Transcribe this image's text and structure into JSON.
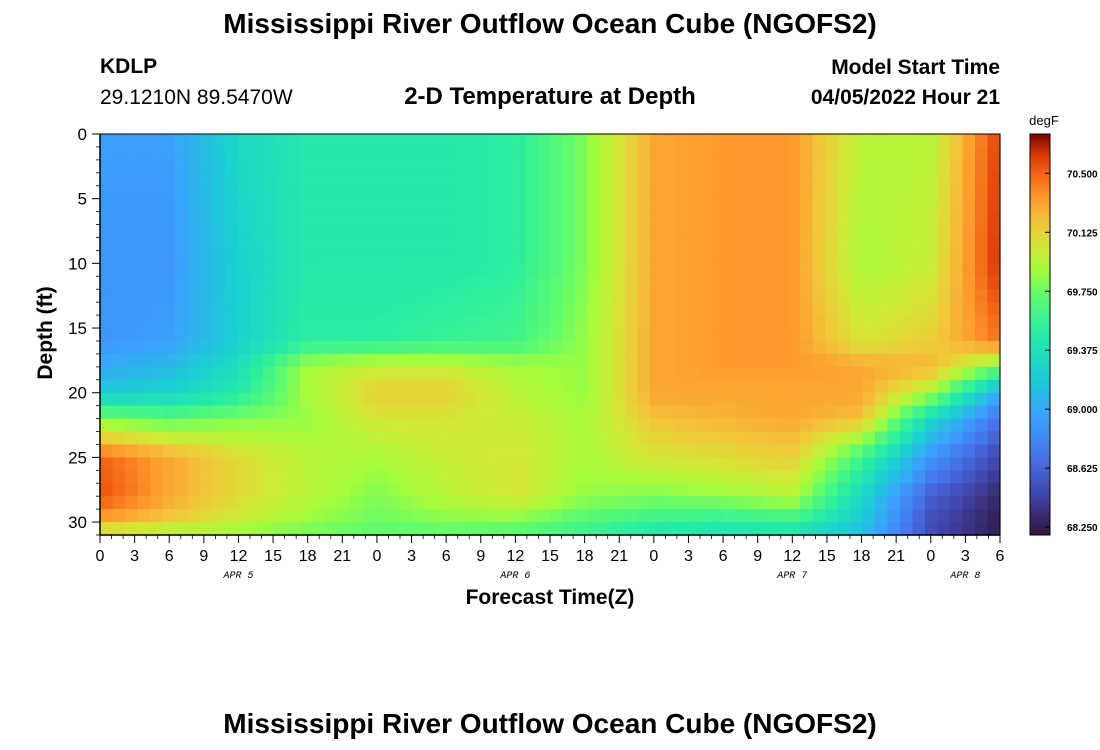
{
  "header": {
    "title": "Mississippi River Outflow Ocean Cube (NGOFS2)",
    "station_id": "KDLP",
    "coordinates": "29.1210N  89.5470W",
    "subtitle": "2-D Temperature at Depth",
    "model_label": "Model Start Time",
    "model_time": "04/05/2022 Hour 21"
  },
  "footer": {
    "title": "Mississippi River Outflow Ocean Cube (NGOFS2)"
  },
  "chart_data": {
    "type": "heatmap",
    "title": "2-D Temperature at Depth",
    "xlabel": "Forecast Time(Z)",
    "ylabel": "Depth (ft)",
    "x_tick_labels": [
      "0",
      "3",
      "6",
      "9",
      "12",
      "15",
      "18",
      "21",
      "0",
      "3",
      "6",
      "9",
      "12",
      "15",
      "18",
      "21",
      "0",
      "3",
      "6",
      "9",
      "12",
      "15",
      "18",
      "21",
      "0",
      "3",
      "6"
    ],
    "x_range_hours": [
      0,
      78
    ],
    "date_labels": [
      {
        "label": "APR 5",
        "hour": 12
      },
      {
        "label": "APR 6",
        "hour": 36
      },
      {
        "label": "APR 7",
        "hour": 60
      },
      {
        "label": "APR 8",
        "hour": 75
      }
    ],
    "y_ticks": [
      0,
      5,
      10,
      15,
      20,
      25,
      30
    ],
    "y_range": [
      0,
      31
    ],
    "colorbar": {
      "unit": "degF",
      "range": [
        68.2,
        70.75
      ],
      "tick_values": [
        70.5,
        70.125,
        69.75,
        69.375,
        69.0,
        68.625,
        68.25
      ],
      "tick_labels": [
        "70.500",
        "70.125",
        "69.750",
        "69.375",
        "69.000",
        "68.625",
        "68.250"
      ]
    },
    "depth_levels_ft": [
      0,
      10,
      16,
      18,
      20,
      22,
      25,
      28,
      30,
      31
    ],
    "time_knots_hours": [
      0,
      6,
      12,
      18,
      24,
      30,
      36,
      42,
      48,
      54,
      60,
      66,
      72,
      78
    ],
    "temperature_degF": [
      [
        68.95,
        68.95,
        69.3,
        69.45,
        69.45,
        69.45,
        69.5,
        69.8,
        70.3,
        70.35,
        70.35,
        69.95,
        69.95,
        70.6
      ],
      [
        68.9,
        68.9,
        69.25,
        69.45,
        69.45,
        69.45,
        69.5,
        69.8,
        70.3,
        70.35,
        70.35,
        69.9,
        70.0,
        70.65
      ],
      [
        68.9,
        68.95,
        69.25,
        69.5,
        69.5,
        69.55,
        69.6,
        69.85,
        70.3,
        70.35,
        70.35,
        70.05,
        70.15,
        70.45
      ],
      [
        69.0,
        69.1,
        69.35,
        69.9,
        70.0,
        70.0,
        69.9,
        69.85,
        70.3,
        70.35,
        70.35,
        70.3,
        70.25,
        69.75
      ],
      [
        69.2,
        69.25,
        69.45,
        69.9,
        70.15,
        70.15,
        69.95,
        69.85,
        70.3,
        70.3,
        70.3,
        70.3,
        69.9,
        69.0
      ],
      [
        69.8,
        69.7,
        69.8,
        69.85,
        70.05,
        70.05,
        70.0,
        69.9,
        70.2,
        70.25,
        70.3,
        70.2,
        69.3,
        68.7
      ],
      [
        70.5,
        70.3,
        70.1,
        69.95,
        69.9,
        70.0,
        70.05,
        69.9,
        70.05,
        70.1,
        70.15,
        69.6,
        68.9,
        68.45
      ],
      [
        70.55,
        70.3,
        70.1,
        69.95,
        69.8,
        69.95,
        70.05,
        69.85,
        69.8,
        69.85,
        69.95,
        69.3,
        68.6,
        68.3
      ],
      [
        70.3,
        70.15,
        70.0,
        69.85,
        69.75,
        69.8,
        69.8,
        69.65,
        69.55,
        69.5,
        69.55,
        69.2,
        68.5,
        68.25
      ],
      [
        69.9,
        69.85,
        69.8,
        69.75,
        69.7,
        69.7,
        69.65,
        69.55,
        69.4,
        69.35,
        69.35,
        69.1,
        68.5,
        68.25
      ]
    ]
  }
}
